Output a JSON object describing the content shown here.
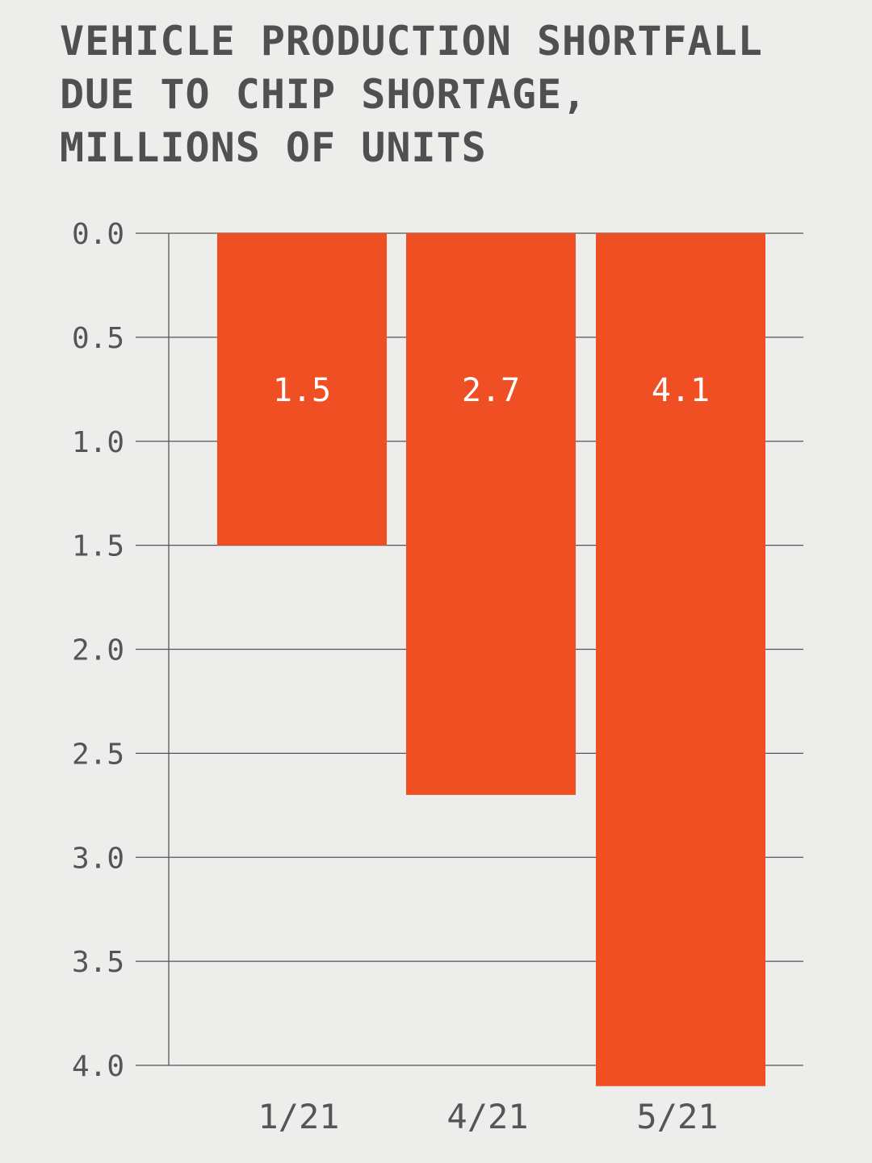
{
  "title": "VEHICLE PRODUCTION SHORTFALL\nDUE TO CHIP SHORTAGE,\nMILLIONS OF UNITS",
  "colors": {
    "background": "#ededeb",
    "bar": "#f04f23",
    "grid": "#555555",
    "text": "#505050",
    "data_label": "#ffffff"
  },
  "chart_data": {
    "type": "bar",
    "title": "VEHICLE PRODUCTION SHORTFALL DUE TO CHIP SHORTAGE, MILLIONS OF UNITS",
    "categories": [
      "1/21",
      "4/21",
      "5/21"
    ],
    "values": [
      1.5,
      2.7,
      4.1
    ],
    "data_labels": [
      "1.5",
      "2.7",
      "4.1"
    ],
    "y_ticks": [
      0.0,
      0.5,
      1.0,
      1.5,
      2.0,
      2.5,
      3.0,
      3.5,
      4.0
    ],
    "y_tick_labels": [
      "0.0",
      "0.5",
      "1.0",
      "1.5",
      "2.0",
      "2.5",
      "3.0",
      "3.5",
      "4.0"
    ],
    "ylim": [
      0,
      4.0
    ],
    "y_inverted": true,
    "grid": true,
    "legend": "none",
    "xlabel": "",
    "ylabel": ""
  }
}
